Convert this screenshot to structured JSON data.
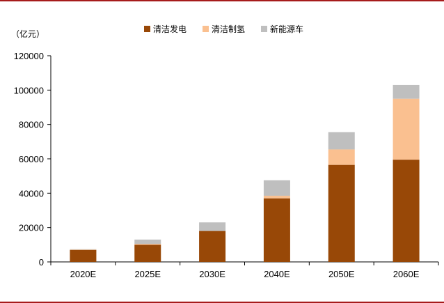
{
  "chart_data": {
    "type": "bar",
    "stacked": true,
    "unit_label": "（亿元）",
    "categories": [
      "2020E",
      "2025E",
      "2030E",
      "2040E",
      "2050E",
      "2060E"
    ],
    "series": [
      {
        "name": "清洁发电",
        "color": "#984807",
        "values": [
          7000,
          10000,
          18000,
          37000,
          56500,
          59500
        ]
      },
      {
        "name": "清洁制氢",
        "color": "#FAC090",
        "values": [
          200,
          500,
          0,
          1500,
          9000,
          35500
        ]
      },
      {
        "name": "新能源车",
        "color": "#BFBFBF",
        "values": [
          200,
          2500,
          5000,
          9000,
          10000,
          8000
        ]
      }
    ],
    "ylim": [
      0,
      120000
    ],
    "yticks": [
      0,
      20000,
      40000,
      60000,
      80000,
      100000,
      120000
    ],
    "legend_position": "top-center",
    "grid": false
  }
}
